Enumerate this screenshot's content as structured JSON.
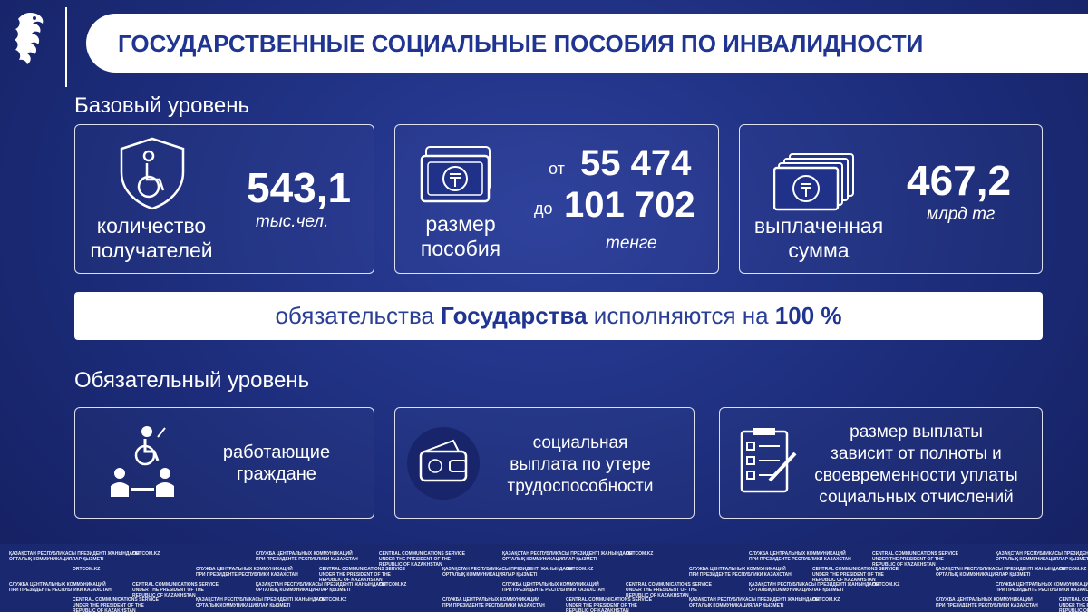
{
  "header": {
    "title": "ГОСУДАРСТВЕННЫЕ СОЦИАЛЬНЫЕ ПОСОБИЯ ПО ИНВАЛИДНОСТИ"
  },
  "basic": {
    "heading": "Базовый уровень",
    "cards": [
      {
        "label": [
          "количество",
          "получателей"
        ],
        "value": "543,1",
        "unit": "тыс.чел."
      },
      {
        "label": [
          "размер",
          "пособия"
        ],
        "from": "от",
        "from_value": "55 474",
        "to": "до",
        "to_value": "101 702",
        "unit": "тенге"
      },
      {
        "label": [
          "выплаченная",
          "сумма"
        ],
        "value": "467,2",
        "unit": "млрд тг"
      }
    ]
  },
  "banner": {
    "parts": [
      "обязательства ",
      "Государства",
      " исполняются на ",
      "100 %"
    ]
  },
  "mandatory": {
    "heading": "Обязательный уровень",
    "cards": [
      {
        "label": [
          "работающие",
          "граждане"
        ]
      },
      {
        "label": [
          "социальная",
          "выплата по утере",
          "трудоспособности"
        ]
      },
      {
        "label": [
          "размер выплаты",
          "зависит от полноты и",
          "своевременности уплаты",
          "социальных отчислений"
        ]
      }
    ]
  },
  "footer": {
    "watermarks": [
      [
        "ҚАЗАҚСТАН РЕСПУБЛИКАСЫ ПРЕЗИДЕНТІ ЖАНЫНДАҒЫ",
        "ОРТАЛЫҚ КОММУНИКАЦИЯЛАР ҚЫЗМЕТІ"
      ],
      [
        "ORTCOM.KZ"
      ],
      [
        "СЛУЖБА ЦЕНТРАЛЬНЫХ КОММУНИКАЦИЙ",
        "ПРИ ПРЕЗИДЕНТЕ РЕСПУБЛИКИ КАЗАХСТАН"
      ],
      [
        "CENTRAL COMMUNICATIONS SERVICE",
        "UNDER THE PRESIDENT OF THE",
        "REPUBLIC OF KAZAKHSTAN"
      ]
    ]
  }
}
